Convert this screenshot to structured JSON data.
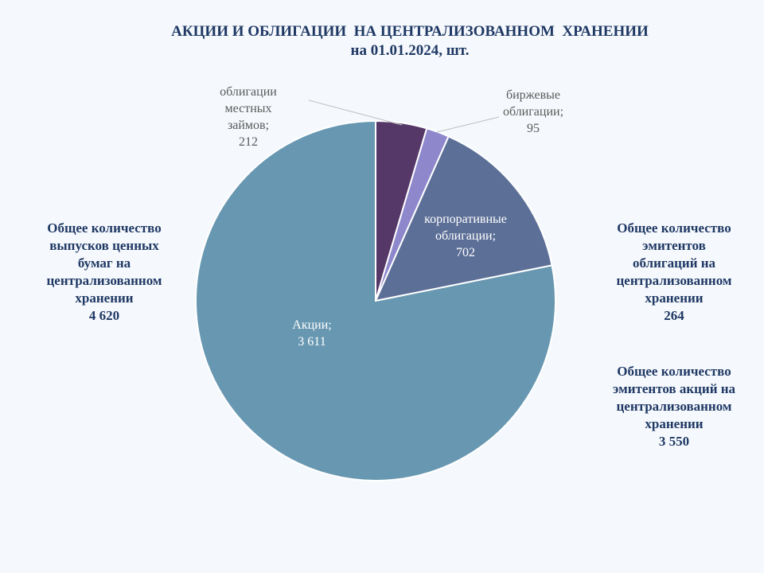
{
  "title": "АКЦИИ И ОБЛИГАЦИИ  НА ЦЕНТРАЛИЗОВАННОМ  ХРАНЕНИИ",
  "subtitle": "на 01.01.2024, шт.",
  "summary_left": {
    "lines": [
      "Общее количество",
      "выпусков ценных",
      "бумаг на",
      "централизованном",
      "хранении"
    ],
    "value": "4 620"
  },
  "summary_right_top": {
    "lines": [
      "Общее количество",
      "эмитентов",
      "облигаций на",
      "централизованном",
      "хранении"
    ],
    "value": "264"
  },
  "summary_right_bottom": {
    "lines": [
      "Общее количество",
      "эмитентов акций на",
      "централизованном",
      "хранении"
    ],
    "value": "3 550"
  },
  "chart_data": {
    "type": "pie",
    "title": "АКЦИИ И ОБЛИГАЦИИ  НА ЦЕНТРАЛИЗОВАННОМ  ХРАНЕНИИ",
    "subtitle": "на 01.01.2024, шт.",
    "start_angle_deg": 0,
    "direction": "clockwise",
    "slices": [
      {
        "label_lines": [
          "облигации",
          "местных",
          "займов;"
        ],
        "value": 212,
        "value_text": "212",
        "color": "#553868"
      },
      {
        "label_lines": [
          "биржевые",
          "облигации;"
        ],
        "value": 95,
        "value_text": "95",
        "color": "#8e87cc"
      },
      {
        "label_lines": [
          "корпоративные",
          "облигации;"
        ],
        "value": 702,
        "value_text": "702",
        "color": "#5c6f97"
      },
      {
        "label_lines": [
          "Акции;"
        ],
        "value": 3611,
        "value_text": "3 611",
        "color": "#6898b1"
      }
    ]
  }
}
